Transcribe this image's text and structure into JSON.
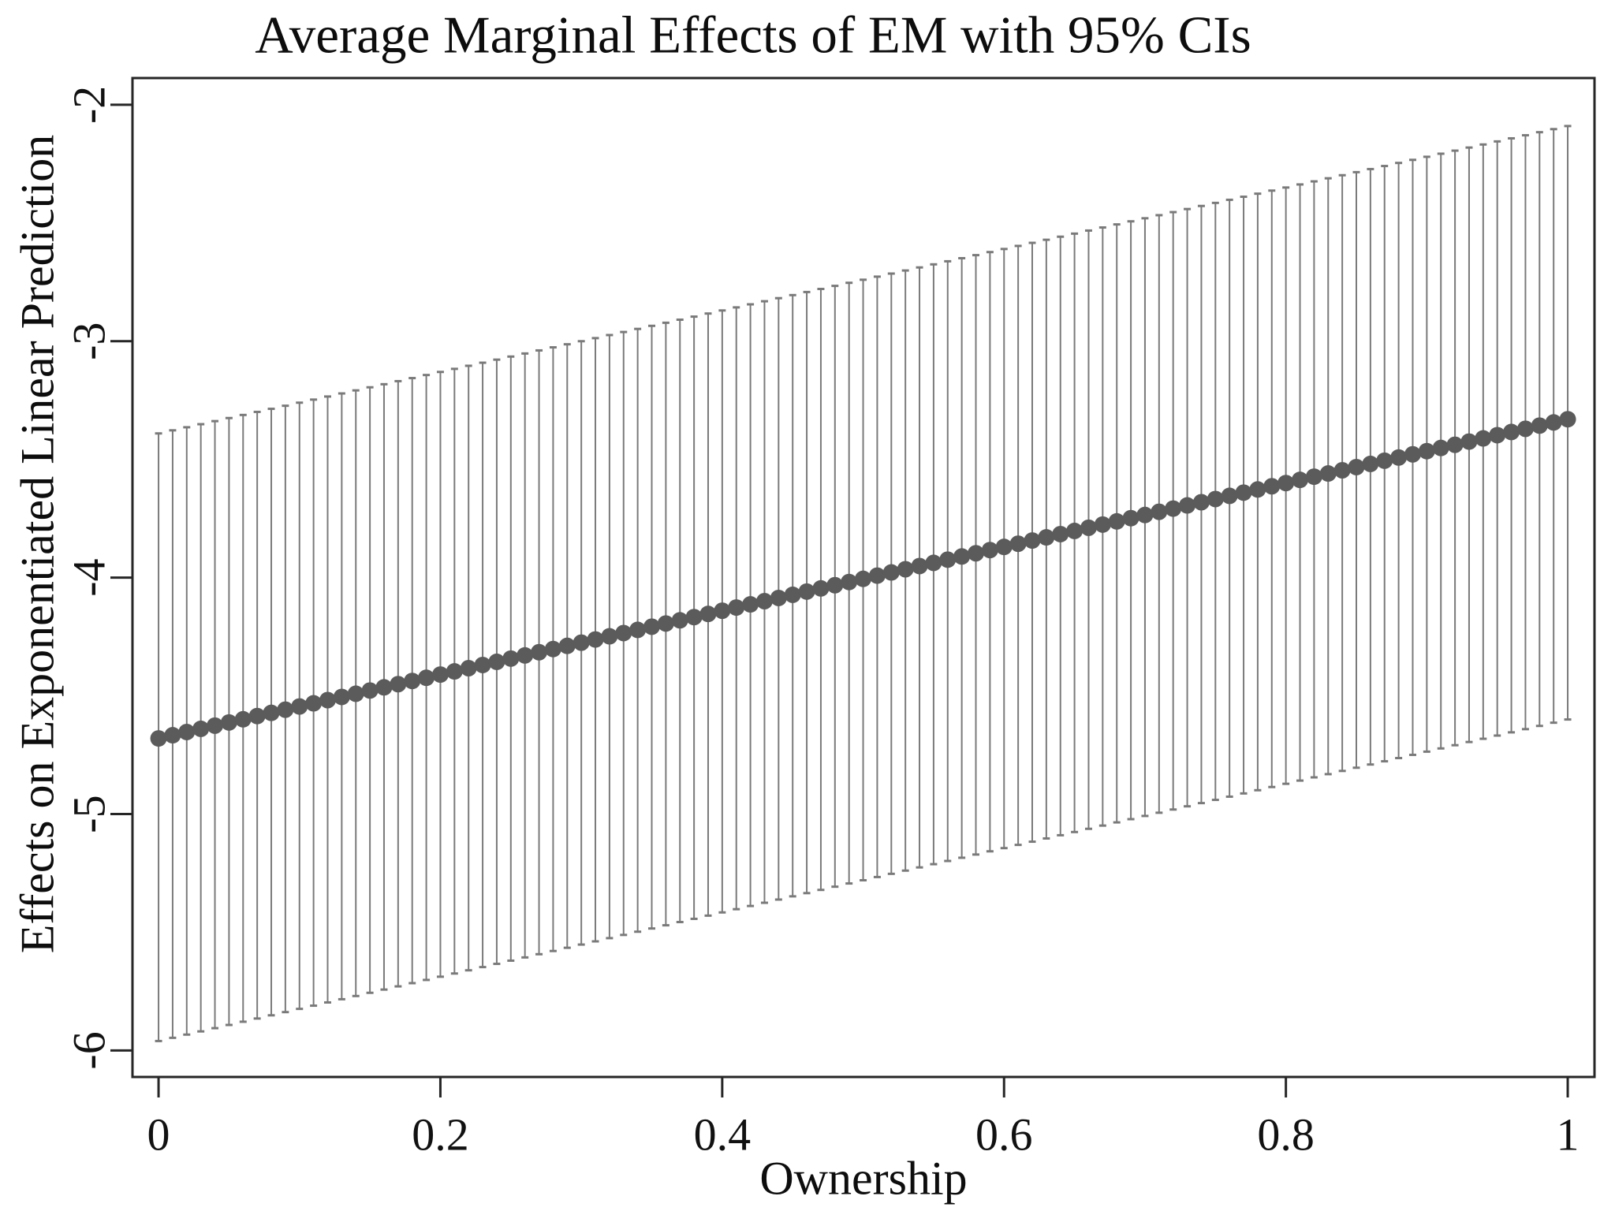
{
  "figure": {
    "kind": "stata-marginsplot"
  },
  "chart_data": {
    "type": "scatter",
    "subtype": "point-estimates-with-error-bars",
    "title": "Average Marginal Effects of EM with 95% CIs",
    "xlabel": "Ownership",
    "ylabel": "Effects on Exponentiated Linear Prediction",
    "ci_level": "95%",
    "grid": false,
    "legend": "none",
    "xlim": [
      -0.0185,
      1.019
    ],
    "ylim": [
      -6.112,
      -1.887
    ],
    "x_ticks": [
      0,
      0.2,
      0.4,
      0.6,
      0.8,
      1
    ],
    "x_tick_labels": [
      "0",
      "0.2",
      "0.4",
      "0.6",
      "0.8",
      "1"
    ],
    "y_ticks": [
      -2,
      -3,
      -4,
      -5,
      -6
    ],
    "y_tick_labels": [
      "-2",
      "-3",
      "-4",
      "-5",
      "-6"
    ],
    "x_range": [
      0,
      1
    ],
    "n_points": 101,
    "x_anchor": [
      0,
      0.1,
      0.2,
      0.3,
      0.4,
      0.5,
      0.6,
      0.7,
      0.8,
      0.9,
      1
    ],
    "series": [
      {
        "name": "estimate",
        "values": [
          -4.68,
          -4.545,
          -4.41,
          -4.275,
          -4.14,
          -4.005,
          -3.87,
          -3.735,
          -3.6,
          -3.465,
          -3.33
        ]
      },
      {
        "name": "ci_lower",
        "values": [
          -5.96,
          -5.824,
          -5.688,
          -5.552,
          -5.416,
          -5.28,
          -5.144,
          -5.008,
          -4.872,
          -4.736,
          -4.6
        ]
      },
      {
        "name": "ci_upper",
        "values": [
          -3.39,
          -3.26,
          -3.13,
          -3.0,
          -2.87,
          -2.74,
          -2.61,
          -2.48,
          -2.35,
          -2.22,
          -2.09
        ]
      }
    ],
    "colors": {
      "background": "#ffffff",
      "dot": "#5b5b5b",
      "ci_line": "#7a7a7a",
      "axis": "#262626",
      "text": "#111111"
    }
  }
}
